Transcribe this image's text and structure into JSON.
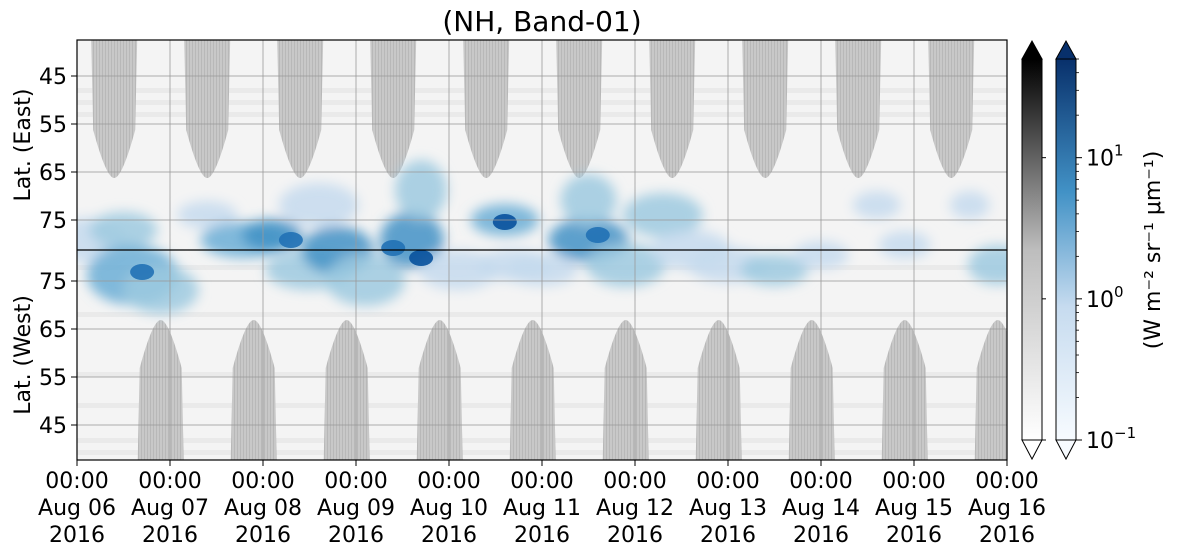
{
  "chart_data": {
    "type": "heatmap",
    "title": "(NH, Band-01)",
    "y_label_top": "Lat. (East)",
    "y_label_bottom": "Lat. (West)",
    "y_ticks_top": [
      "45",
      "55",
      "65",
      "75"
    ],
    "y_ticks_bottom": [
      "75",
      "65",
      "55",
      "45"
    ],
    "x_ticks": [
      {
        "time": "00:00",
        "date": "Aug 06",
        "year": "2016"
      },
      {
        "time": "00:00",
        "date": "Aug 07",
        "year": "2016"
      },
      {
        "time": "00:00",
        "date": "Aug 08",
        "year": "2016"
      },
      {
        "time": "00:00",
        "date": "Aug 09",
        "year": "2016"
      },
      {
        "time": "00:00",
        "date": "Aug 10",
        "year": "2016"
      },
      {
        "time": "00:00",
        "date": "Aug 11",
        "year": "2016"
      },
      {
        "time": "00:00",
        "date": "Aug 12",
        "year": "2016"
      },
      {
        "time": "00:00",
        "date": "Aug 13",
        "year": "2016"
      },
      {
        "time": "00:00",
        "date": "Aug 14",
        "year": "2016"
      },
      {
        "time": "00:00",
        "date": "Aug 15",
        "year": "2016"
      },
      {
        "time": "00:00",
        "date": "Aug 16",
        "year": "2016"
      }
    ],
    "x_range": [
      "2016-08-06 00:00",
      "2016-08-16 00:00"
    ],
    "colorbar_label": "(W m⁻² sr⁻¹ μm⁻¹)",
    "colorbar_ticks": [
      {
        "base": "10",
        "exp": "1"
      },
      {
        "base": "10",
        "exp": "0"
      },
      {
        "base": "10",
        "exp": "−1"
      }
    ],
    "colorbar_scale": "log",
    "colorbar_range": [
      0.1,
      50
    ],
    "colormaps": [
      "Greys",
      "Blues"
    ],
    "colors": {
      "grey_band": "#c4c4c4",
      "blue_dark": "#08519c",
      "blue_light": "#c6dbef",
      "divider": "#000000"
    },
    "grid": true,
    "daytime_grey_sectors_top_days": [
      0.4,
      1.4,
      2.4,
      3.4,
      4.4,
      5.4,
      6.4,
      7.4,
      8.4,
      9.4
    ],
    "daytime_grey_sectors_bottom_days": [
      0.9,
      1.9,
      2.9,
      3.9,
      4.9,
      5.9,
      6.9,
      7.9,
      8.9,
      9.9
    ]
  }
}
